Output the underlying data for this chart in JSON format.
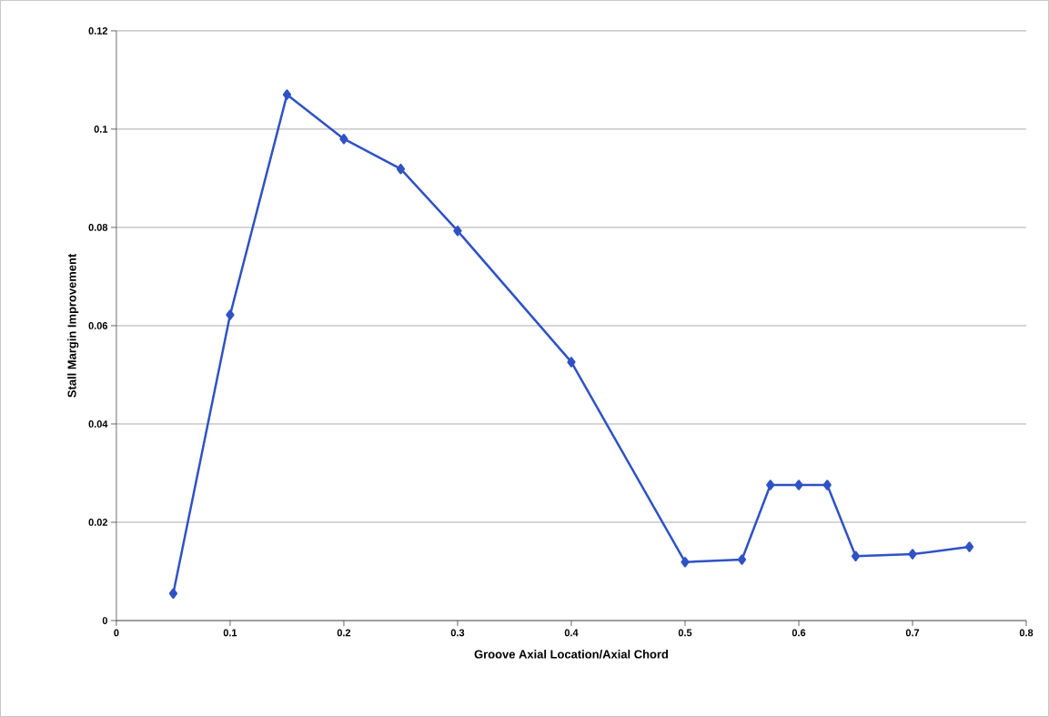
{
  "chart_data": {
    "type": "line",
    "xlabel": "Groove Axial Location/Axial Chord",
    "ylabel": "Stall Margin Improvement",
    "x": [
      0.05,
      0.1,
      0.15,
      0.2,
      0.25,
      0.3,
      0.4,
      0.5,
      0.55,
      0.575,
      0.6,
      0.625,
      0.65,
      0.7,
      0.75
    ],
    "series": [
      {
        "color": "#2f52c4",
        "values": [
          0.0055,
          0.0622,
          0.107,
          0.098,
          0.0919,
          0.0793,
          0.0526,
          0.0119,
          0.0124,
          0.0276,
          0.0276,
          0.0276,
          0.0131,
          0.0135,
          0.015
        ]
      }
    ],
    "xlim": [
      0,
      0.8
    ],
    "xticks": [
      0,
      0.1,
      0.2,
      0.3,
      0.4,
      0.5,
      0.6,
      0.7,
      0.8
    ],
    "ylim": [
      0,
      0.12
    ],
    "yticks": [
      0,
      0.02,
      0.04,
      0.06,
      0.08,
      0.1,
      0.12
    ],
    "grid": "y",
    "marker": "diamond",
    "line_style": "solid"
  }
}
